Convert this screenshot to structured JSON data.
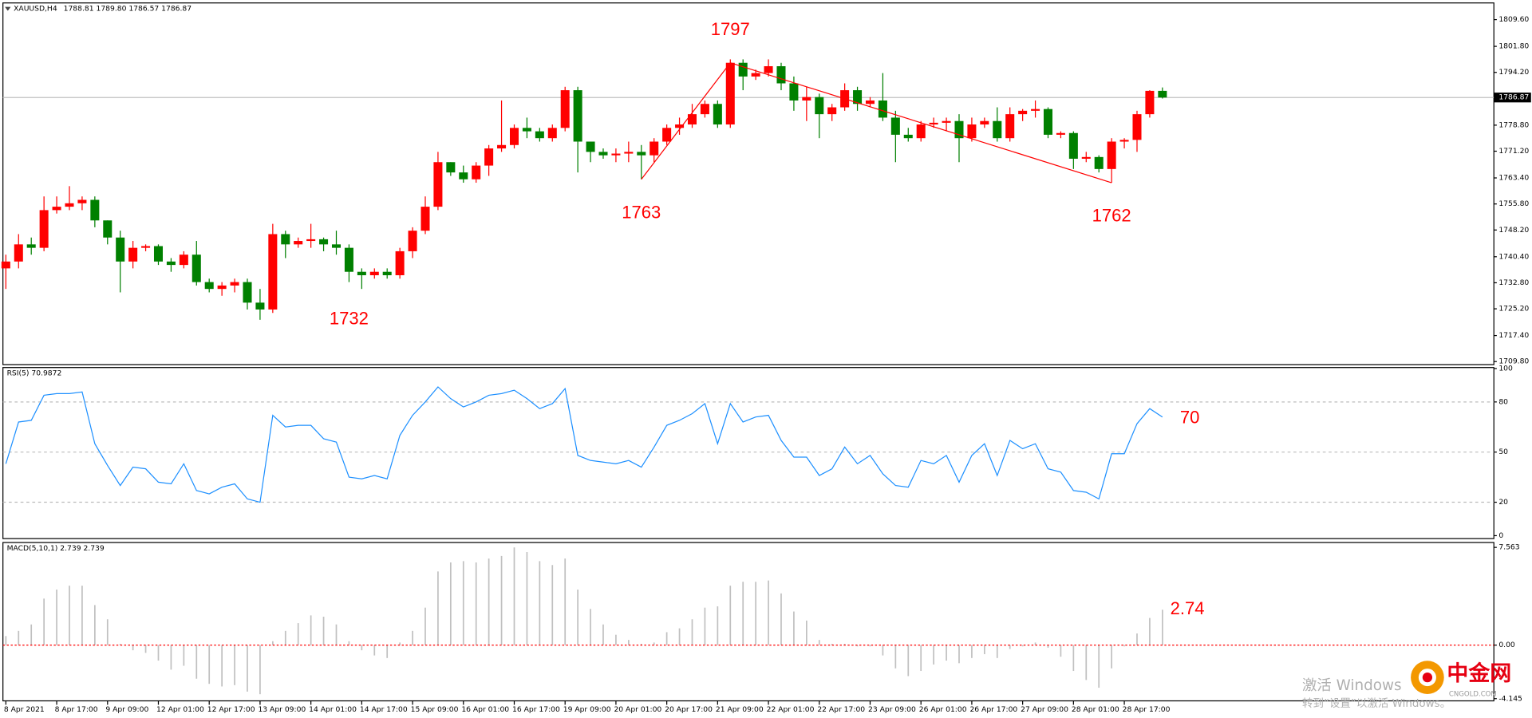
{
  "chart_data": [
    {
      "type": "candlestick",
      "title": "XAUUSD,H4",
      "info": "1788.81 1789.80 1786.57 1786.87",
      "up_color": "#ff0000",
      "down_color": "#008000",
      "open": [
        1737,
        1739,
        1744,
        1743,
        1754,
        1755,
        1756,
        1757,
        1751,
        1746,
        1739,
        1743,
        1743.5,
        1739,
        1738,
        1741,
        1733,
        1731,
        1732,
        1733,
        1727,
        1725,
        1747,
        1744,
        1745,
        1745.5,
        1744,
        1743,
        1736,
        1735,
        1736,
        1735,
        1742,
        1748,
        1755,
        1768,
        1765,
        1763,
        1767,
        1772,
        1773,
        1778,
        1777,
        1775,
        1778,
        1789,
        1774,
        1771,
        1770,
        1770.5,
        1771,
        1770,
        1774,
        1778,
        1779,
        1782,
        1785,
        1779,
        1797,
        1793,
        1794,
        1796,
        1791,
        1786,
        1787,
        1782,
        1784,
        1789,
        1785,
        1786,
        1781,
        1776,
        1775,
        1779,
        1779.5,
        1780,
        1775,
        1779,
        1780,
        1775,
        1782,
        1783,
        1783.5,
        1776,
        1776.5,
        1769,
        1769.5,
        1766,
        1774,
        1774.5,
        1782,
        1788.81
      ],
      "high": [
        1741,
        1747,
        1746,
        1758,
        1758,
        1761,
        1758,
        1758,
        1751,
        1748,
        1745,
        1744,
        1744,
        1740,
        1742,
        1745,
        1734,
        1733,
        1734,
        1734,
        1731,
        1750,
        1748,
        1746,
        1750,
        1746,
        1748,
        1744,
        1737,
        1737,
        1737,
        1743,
        1749,
        1758,
        1771,
        1768,
        1767,
        1768,
        1773,
        1786,
        1779,
        1781,
        1778,
        1779,
        1790,
        1790,
        1774,
        1772,
        1772,
        1774,
        1773,
        1775,
        1779,
        1781,
        1785,
        1786,
        1786,
        1798,
        1798,
        1795,
        1798,
        1797,
        1793,
        1790,
        1788,
        1785,
        1791,
        1790,
        1787,
        1794,
        1783,
        1778,
        1780,
        1781,
        1781,
        1782,
        1781,
        1781,
        1784,
        1784,
        1783.5,
        1786,
        1784,
        1777,
        1777,
        1771,
        1770,
        1775,
        1775,
        1783,
        1789,
        1789.8
      ],
      "low": [
        1731,
        1737,
        1741,
        1742,
        1753,
        1754,
        1754,
        1749,
        1744,
        1730,
        1737,
        1742,
        1738,
        1736,
        1737,
        1732,
        1730,
        1729,
        1730,
        1725,
        1722,
        1724,
        1740,
        1743,
        1743,
        1742,
        1741,
        1733,
        1731,
        1734,
        1734,
        1734,
        1740,
        1747,
        1754,
        1764,
        1762,
        1762,
        1764,
        1771,
        1772,
        1775,
        1774,
        1774,
        1777,
        1765,
        1768,
        1769,
        1768,
        1768,
        1763,
        1768,
        1773,
        1776,
        1778,
        1781,
        1778,
        1778,
        1789,
        1792,
        1793,
        1789,
        1783,
        1780,
        1775,
        1780,
        1783,
        1783,
        1784,
        1780,
        1768,
        1774,
        1774,
        1778,
        1777,
        1768,
        1774,
        1778,
        1774,
        1774,
        1780,
        1781,
        1775,
        1775,
        1766,
        1768,
        1765,
        1762,
        1772,
        1771,
        1781,
        1786.57
      ],
      "close": [
        1739,
        1744,
        1743,
        1754,
        1755,
        1756,
        1757,
        1751,
        1746,
        1739,
        1743,
        1743.5,
        1739,
        1738,
        1741,
        1733,
        1731,
        1732,
        1733,
        1727,
        1725,
        1747,
        1744,
        1745,
        1745.5,
        1744,
        1743,
        1736,
        1735,
        1736,
        1735,
        1742,
        1748,
        1755,
        1768,
        1765,
        1763,
        1767,
        1772,
        1773,
        1778,
        1777,
        1775,
        1778,
        1789,
        1774,
        1771,
        1770,
        1770.5,
        1771,
        1770,
        1774,
        1778,
        1779,
        1782,
        1785,
        1779,
        1797,
        1793,
        1794,
        1796,
        1791,
        1786,
        1787,
        1782,
        1784,
        1789,
        1785,
        1786,
        1781,
        1776,
        1775,
        1779,
        1779.5,
        1780,
        1775,
        1779,
        1780,
        1775,
        1782,
        1783,
        1783.5,
        1776,
        1776.5,
        1769,
        1769.5,
        1766,
        1774,
        1774.5,
        1782,
        1788.81,
        1786.87
      ],
      "ylim": [
        1709.2,
        1813.9
      ],
      "yticks": [
        {
          "value": 1809.6,
          "label": "1809.60"
        },
        {
          "value": 1801.8,
          "label": "1801.80"
        },
        {
          "value": 1794.2,
          "label": "1794.20"
        },
        {
          "value": 1778.8,
          "label": "1778.80"
        },
        {
          "value": 1771.2,
          "label": "1771.20"
        },
        {
          "value": 1763.4,
          "label": "1763.40"
        },
        {
          "value": 1755.8,
          "label": "1755.80"
        },
        {
          "value": 1748.2,
          "label": "1748.20"
        },
        {
          "value": 1740.4,
          "label": "1740.40"
        },
        {
          "value": 1732.8,
          "label": "1732.80"
        },
        {
          "value": 1725.2,
          "label": "1725.20"
        },
        {
          "value": 1717.4,
          "label": "1717.40"
        },
        {
          "value": 1709.8,
          "label": "1709.80"
        }
      ],
      "last_price": {
        "value": 1786.87,
        "label": "1786.87"
      },
      "annotation_color": "#ff0000",
      "annotations": [
        {
          "value": 1732,
          "at": 27,
          "side": "below"
        },
        {
          "value": 1763,
          "at": 50,
          "side": "below",
          "on_trendline": true
        },
        {
          "value": 1797,
          "at": 57,
          "side": "above",
          "on_trendline": true
        },
        {
          "value": 1762,
          "at": 87,
          "side": "below",
          "on_trendline": true
        }
      ]
    },
    {
      "type": "line",
      "title": "RSI(5) 70.9872",
      "color": "#1e90ff",
      "values": [
        43,
        68,
        69,
        84,
        85,
        85,
        86,
        55,
        42,
        30,
        41,
        40,
        32,
        31,
        43,
        27,
        25,
        29,
        31,
        22,
        20,
        72,
        65,
        66,
        66,
        58,
        56,
        35,
        34,
        36,
        34,
        60,
        72,
        80,
        89,
        82,
        77,
        80,
        84,
        85,
        87,
        82,
        76,
        79,
        88,
        48,
        45,
        44,
        43,
        45,
        41,
        53,
        66,
        69,
        73,
        79,
        55,
        79,
        68,
        71,
        72,
        57,
        47,
        47,
        36,
        40,
        53,
        43,
        48,
        37,
        30,
        29,
        45,
        43,
        48,
        32,
        48,
        55,
        36,
        57,
        52,
        55,
        40,
        38,
        27,
        26,
        22,
        49,
        49,
        67,
        76,
        70.9872
      ],
      "ylim": [
        0,
        100
      ],
      "yticks": [
        0,
        20,
        50,
        80,
        100
      ],
      "annotation": 70
    },
    {
      "type": "bar",
      "title": "MACD(5,10,1) 2.739 2.739",
      "color": "#c0c0c0",
      "zero_line_color": "#ff0000",
      "values": [
        0.7,
        1.1,
        1.6,
        3.6,
        4.3,
        4.6,
        4.6,
        3.1,
        2.0,
        0.1,
        -0.4,
        -0.6,
        -1.2,
        -1.9,
        -1.6,
        -2.6,
        -3.0,
        -3.2,
        -3.1,
        -3.6,
        -3.8,
        0.3,
        1.1,
        1.7,
        2.3,
        2.2,
        1.6,
        0.3,
        -0.4,
        -0.8,
        -1.0,
        0.2,
        1.1,
        2.9,
        5.7,
        6.4,
        6.5,
        6.4,
        6.7,
        6.9,
        7.563,
        7.2,
        6.5,
        6.2,
        6.7,
        4.3,
        2.8,
        1.6,
        0.8,
        0.4,
        0.1,
        0.2,
        1.0,
        1.3,
        2.0,
        2.9,
        3.0,
        4.6,
        4.9,
        4.9,
        5.0,
        4.0,
        2.6,
        1.9,
        0.4,
        0.1,
        0.1,
        -0.1,
        -0.1,
        -0.8,
        -1.8,
        -2.4,
        -2.0,
        -1.5,
        -1.2,
        -1.4,
        -1.0,
        -0.7,
        -1.0,
        -0.3,
        -0.1,
        0.2,
        -0.2,
        -0.9,
        -2.0,
        -2.7,
        -3.3,
        -1.8,
        -0.1,
        0.9,
        2.1,
        2.739
      ],
      "ylim": [
        -4.24,
        7.79
      ],
      "yticks": [
        7.563,
        {
          "value": 0,
          "label": "0.00"
        },
        -4.145
      ],
      "annotation": 2.74,
      "categories": [
        "8 Apr 2021",
        null,
        null,
        null,
        "8 Apr 17:00",
        null,
        null,
        null,
        "9 Apr 09:00",
        null,
        null,
        null,
        "12 Apr 01:00",
        null,
        null,
        null,
        "12 Apr 17:00",
        null,
        null,
        null,
        "13 Apr 09:00",
        null,
        null,
        null,
        "14 Apr 01:00",
        null,
        null,
        null,
        "14 Apr 17:00",
        null,
        null,
        null,
        "15 Apr 09:00",
        null,
        null,
        null,
        "16 Apr 01:00",
        null,
        null,
        null,
        "16 Apr 17:00",
        null,
        null,
        null,
        "19 Apr 09:00",
        null,
        null,
        null,
        "20 Apr 01:00",
        null,
        null,
        null,
        "20 Apr 17:00",
        null,
        null,
        null,
        "21 Apr 09:00",
        null,
        null,
        null,
        "22 Apr 01:00",
        null,
        null,
        null,
        "22 Apr 17:00",
        null,
        null,
        null,
        "23 Apr 09:00",
        null,
        null,
        null,
        "26 Apr 01:00",
        null,
        null,
        null,
        "26 Apr 17:00",
        null,
        null,
        null,
        "27 Apr 09:00",
        null,
        null,
        null,
        "28 Apr 01:00",
        null,
        null,
        null,
        "28 Apr 17:00",
        null,
        null,
        null
      ]
    }
  ],
  "watermark": {
    "line1": "激活 Windows",
    "line2": "转到“设置”以激活 Windows。"
  },
  "logo": {
    "name": "中金网",
    "site": "CNGOLD.COM"
  }
}
